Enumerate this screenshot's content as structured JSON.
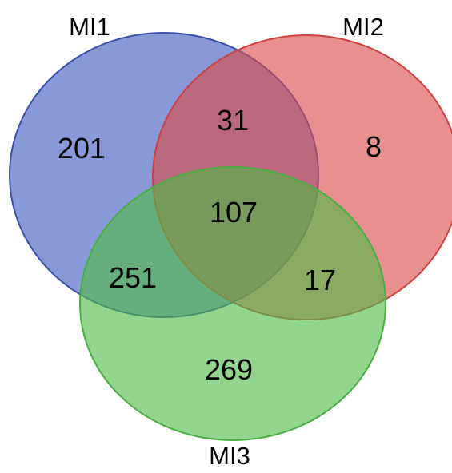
{
  "diagram": {
    "type": "venn3",
    "sets": [
      {
        "id": "MI1",
        "label": "MI1",
        "fill": "#4059bd",
        "stroke": "#3a4fa8"
      },
      {
        "id": "MI2",
        "label": "MI2",
        "fill": "#dc4b4b",
        "stroke": "#cc4040"
      },
      {
        "id": "MI3",
        "label": "MI3",
        "fill": "#4fbb47",
        "stroke": "#48ae41"
      }
    ],
    "regions": {
      "MI1_only": "201",
      "MI2_only": "8",
      "MI3_only": "269",
      "MI1_MI2": "31",
      "MI1_MI3": "251",
      "MI2_MI3": "17",
      "MI1_MI2_MI3": "107"
    }
  }
}
